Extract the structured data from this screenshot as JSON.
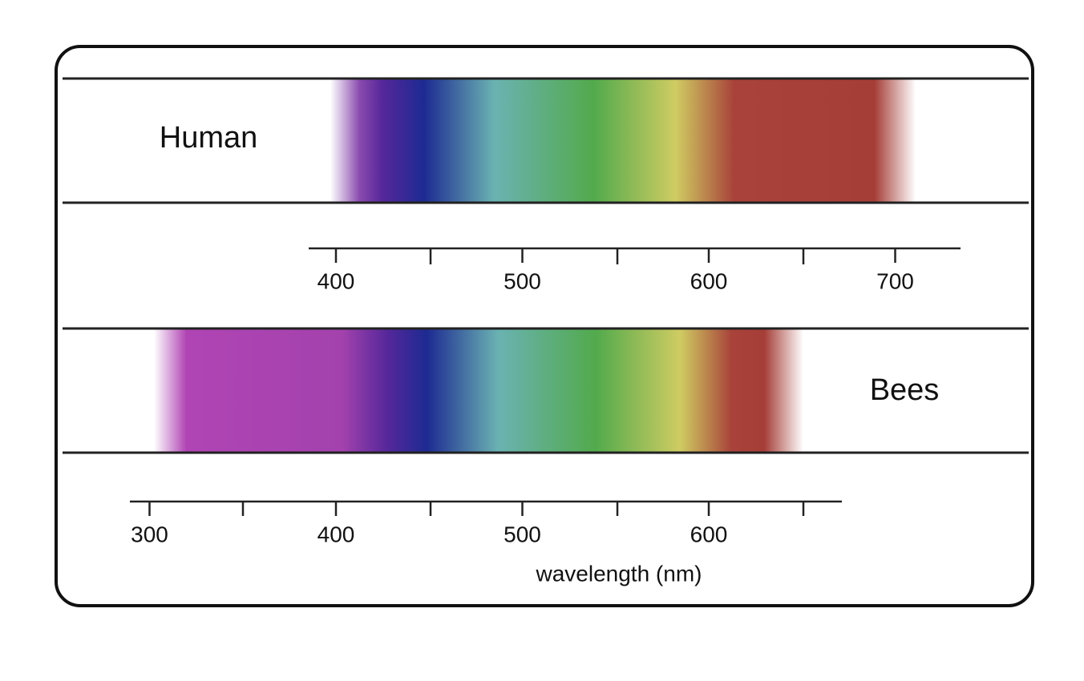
{
  "panels": [
    {
      "label": "Human",
      "axis": {
        "ticks": [
          400,
          500,
          600,
          700
        ]
      }
    },
    {
      "label": "Bees",
      "axis": {
        "ticks": [
          300,
          400,
          500,
          600
        ],
        "title": "wavelength (nm)"
      }
    }
  ]
}
